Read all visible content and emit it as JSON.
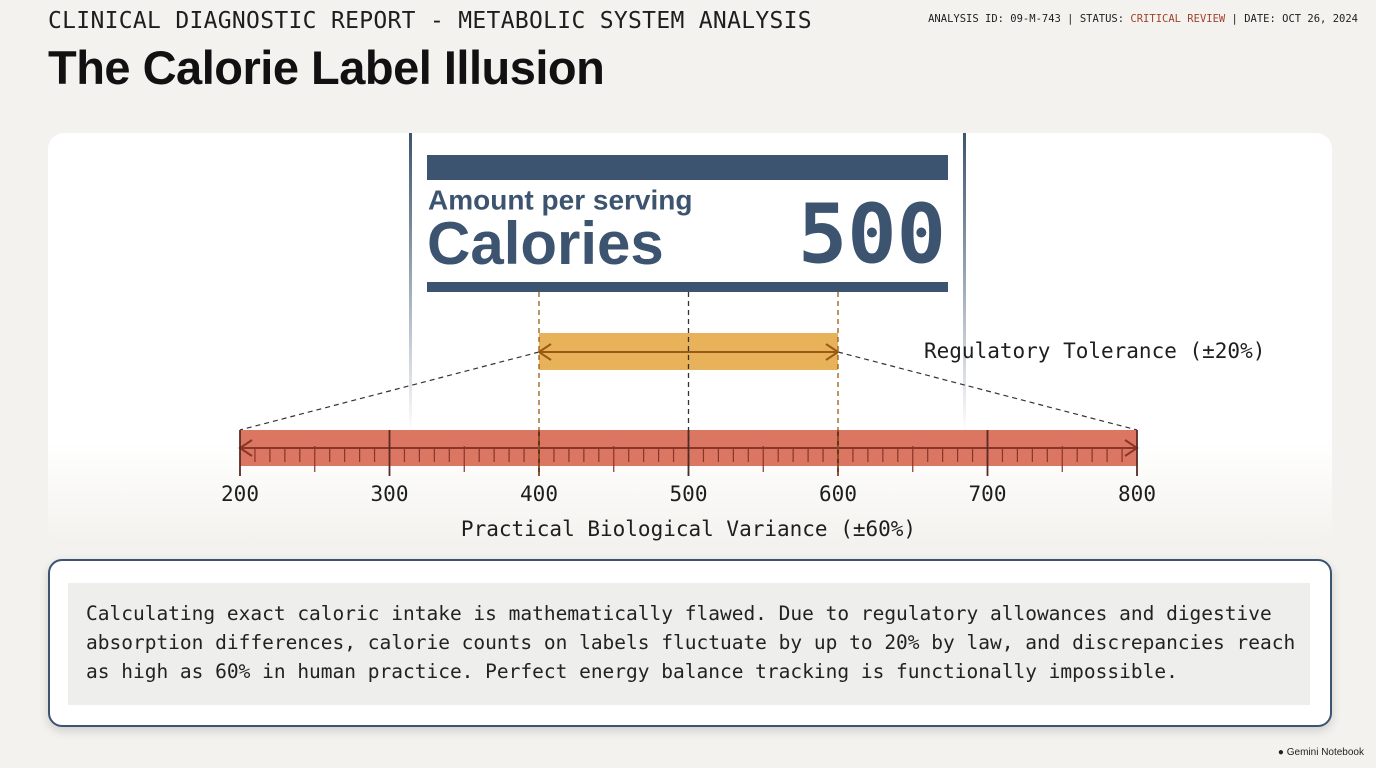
{
  "header": {
    "category": "CLINICAL DIAGNOSTIC REPORT - METABOLIC SYSTEM ANALYSIS",
    "meta": {
      "id": "ANALYSIS ID: 09-M-743 | STATUS: ",
      "status": "CRITICAL REVIEW",
      "date": " | DATE: OCT 26, 2024"
    },
    "title": "The Calorie Label Illusion"
  },
  "label": {
    "heading": "Amount per serving",
    "name": "Calories",
    "value": 500
  },
  "scale": {
    "ticks": [
      200,
      300,
      400,
      500,
      600,
      700,
      800
    ],
    "tolerance": {
      "label": "Regulatory Tolerance (±20%)",
      "range": [
        400,
        600
      ]
    },
    "variance": {
      "label": "Practical Biological Variance (±60%)",
      "range": [
        200,
        800
      ]
    }
  },
  "note": {
    "lines": [
      "Calculating exact caloric intake is mathematically flawed. Due to regulatory allowances and digestive",
      "absorption differences, calorie counts on labels fluctuate by up to 20% by law, and discrepancies reach",
      "as high as 60% in human practice. Perfect energy balance tracking is functionally impossible."
    ]
  },
  "footer": {
    "brand": "Gemini Notebook"
  }
}
